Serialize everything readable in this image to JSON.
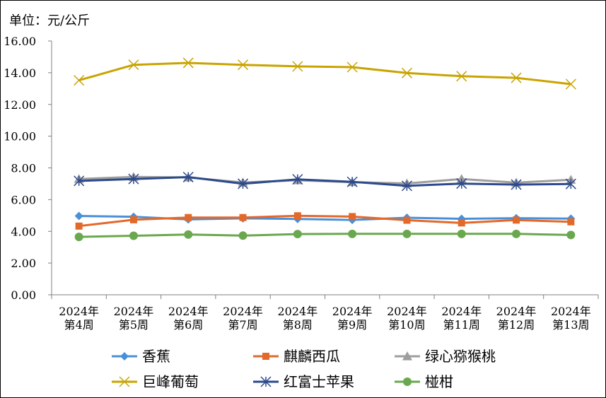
{
  "chart_data": {
    "type": "line",
    "unit_label": "单位：元/公斤",
    "categories": [
      [
        "2024年",
        "第4周"
      ],
      [
        "2024年",
        "第5周"
      ],
      [
        "2024年",
        "第6周"
      ],
      [
        "2024年",
        "第7周"
      ],
      [
        "2024年",
        "第8周"
      ],
      [
        "2024年",
        "第9周"
      ],
      [
        "2024年",
        "第10周"
      ],
      [
        "2024年",
        "第11周"
      ],
      [
        "2024年",
        "第12周"
      ],
      [
        "2024年",
        "第13周"
      ]
    ],
    "y_ticks": [
      "0.00",
      "2.00",
      "4.00",
      "6.00",
      "8.00",
      "10.00",
      "12.00",
      "14.00",
      "16.00"
    ],
    "ylim": [
      0,
      16
    ],
    "grid": false,
    "legend_position": "bottom",
    "series": [
      {
        "name": "香蕉",
        "color": "#4a90d9",
        "marker": "diamond",
        "values": [
          4.97,
          4.92,
          4.75,
          4.82,
          4.78,
          4.72,
          4.86,
          4.79,
          4.83,
          4.8
        ]
      },
      {
        "name": "麒麟西瓜",
        "color": "#e2692a",
        "marker": "square",
        "values": [
          4.33,
          4.73,
          4.87,
          4.87,
          4.98,
          4.93,
          4.7,
          4.53,
          4.71,
          4.6
        ]
      },
      {
        "name": "绿心猕猴桃",
        "color": "#9e9e9e",
        "marker": "triangle",
        "values": [
          7.3,
          7.43,
          7.4,
          7.08,
          7.22,
          7.1,
          7.02,
          7.3,
          7.07,
          7.25
        ]
      },
      {
        "name": "巨峰葡萄",
        "color": "#c9a400",
        "marker": "x",
        "values": [
          13.52,
          14.5,
          14.62,
          14.5,
          14.4,
          14.35,
          13.98,
          13.78,
          13.68,
          13.28
        ]
      },
      {
        "name": "红富士苹果",
        "color": "#2c4a8c",
        "marker": "asterisk",
        "values": [
          7.18,
          7.3,
          7.42,
          7.0,
          7.28,
          7.12,
          6.87,
          7.01,
          6.95,
          6.99
        ]
      },
      {
        "name": "椪柑",
        "color": "#6aa84f",
        "marker": "circle",
        "values": [
          3.65,
          3.72,
          3.8,
          3.73,
          3.83,
          3.84,
          3.84,
          3.84,
          3.84,
          3.77
        ]
      }
    ]
  }
}
